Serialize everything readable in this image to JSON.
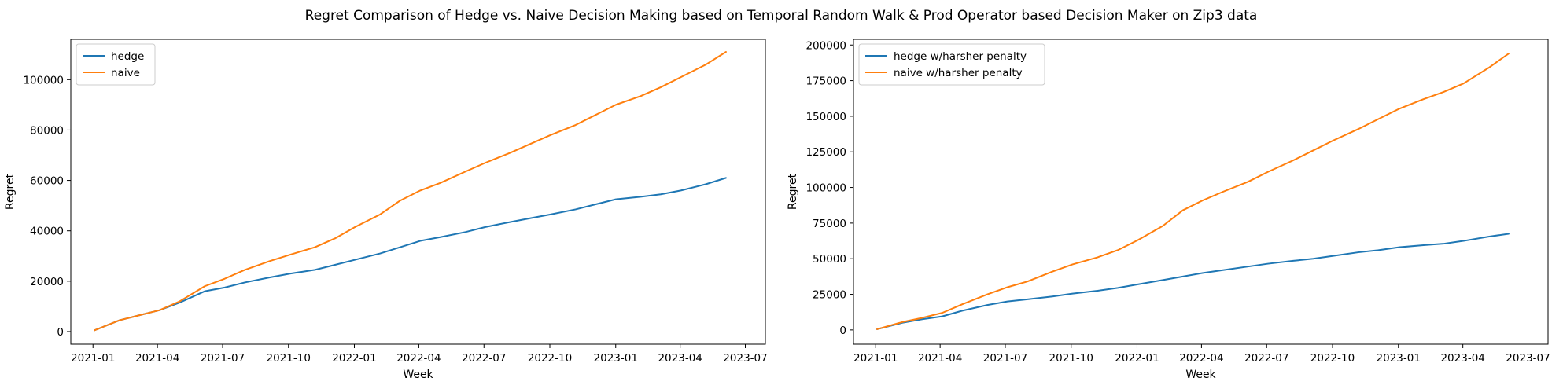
{
  "figure": {
    "suptitle": "Regret Comparison of Hedge vs. Naive Decision Making based on Temporal Random Walk & Prod Operator based Decision Maker on Zip3 data"
  },
  "chart_data": [
    {
      "type": "line",
      "title": "",
      "xlabel": "Week",
      "ylabel": "Regret",
      "x_axis_type": "date",
      "xlim": [
        "2020-12-01",
        "2023-07-29"
      ],
      "ylim": [
        -5000,
        116000
      ],
      "x_ticks": [
        "2021-01",
        "2021-04",
        "2021-07",
        "2021-10",
        "2022-01",
        "2022-04",
        "2022-07",
        "2022-10",
        "2023-01",
        "2023-04",
        "2023-07"
      ],
      "y_ticks": [
        0,
        20000,
        40000,
        60000,
        80000,
        100000
      ],
      "legend": "upper-left",
      "grid": false,
      "x": [
        "2021-01-03",
        "2021-02-07",
        "2021-03-07",
        "2021-04-04",
        "2021-05-02",
        "2021-06-06",
        "2021-07-04",
        "2021-08-01",
        "2021-09-05",
        "2021-10-03",
        "2021-11-07",
        "2021-12-05",
        "2022-01-02",
        "2022-02-06",
        "2022-03-06",
        "2022-04-03",
        "2022-05-01",
        "2022-06-05",
        "2022-07-03",
        "2022-08-07",
        "2022-09-04",
        "2022-10-02",
        "2022-11-06",
        "2022-12-04",
        "2023-01-01",
        "2023-02-05",
        "2023-03-05",
        "2023-04-02",
        "2023-05-07",
        "2023-06-04"
      ],
      "series": [
        {
          "name": "hedge",
          "color": "#1f77b4",
          "values": [
            500,
            4500,
            6500,
            8500,
            11500,
            16000,
            17500,
            19500,
            21500,
            23000,
            24500,
            26500,
            28500,
            31000,
            33500,
            36000,
            37500,
            39500,
            41500,
            43500,
            45000,
            46500,
            48500,
            50500,
            52500,
            53500,
            54500,
            56000,
            58500,
            61000
          ]
        },
        {
          "name": "naive",
          "color": "#ff7f0e",
          "values": [
            500,
            4500,
            6500,
            8500,
            12000,
            18000,
            21000,
            24500,
            28000,
            30500,
            33500,
            37000,
            41500,
            46500,
            52000,
            56000,
            59000,
            63500,
            67000,
            71000,
            74500,
            78000,
            82000,
            86000,
            90000,
            93500,
            97000,
            101000,
            106000,
            111000
          ]
        }
      ]
    },
    {
      "type": "line",
      "title": "",
      "xlabel": "Week",
      "ylabel": "Regret",
      "x_axis_type": "date",
      "xlim": [
        "2020-12-01",
        "2023-07-29"
      ],
      "ylim": [
        -10000,
        204000
      ],
      "x_ticks": [
        "2021-01",
        "2021-04",
        "2021-07",
        "2021-10",
        "2022-01",
        "2022-04",
        "2022-07",
        "2022-10",
        "2023-01",
        "2023-04",
        "2023-07"
      ],
      "y_ticks": [
        0,
        25000,
        50000,
        75000,
        100000,
        125000,
        150000,
        175000,
        200000
      ],
      "legend": "upper-left",
      "grid": false,
      "x": [
        "2021-01-03",
        "2021-02-07",
        "2021-03-07",
        "2021-04-04",
        "2021-05-02",
        "2021-06-06",
        "2021-07-04",
        "2021-08-01",
        "2021-09-05",
        "2021-10-03",
        "2021-11-07",
        "2021-12-05",
        "2022-01-02",
        "2022-02-06",
        "2022-03-06",
        "2022-04-03",
        "2022-05-01",
        "2022-06-05",
        "2022-07-03",
        "2022-08-07",
        "2022-09-04",
        "2022-10-02",
        "2022-11-06",
        "2022-12-04",
        "2023-01-01",
        "2023-02-05",
        "2023-03-05",
        "2023-04-02",
        "2023-05-07",
        "2023-06-04"
      ],
      "series": [
        {
          "name": "hedge w/harsher penalty",
          "color": "#1f77b4",
          "values": [
            500,
            5000,
            7500,
            9500,
            13500,
            17500,
            20000,
            21500,
            23500,
            25500,
            27500,
            29500,
            32000,
            35000,
            37500,
            40000,
            42000,
            44500,
            46500,
            48500,
            50000,
            52000,
            54500,
            56000,
            58000,
            59500,
            60500,
            62500,
            65500,
            67500
          ]
        },
        {
          "name": "naive w/harsher penalty",
          "color": "#ff7f0e",
          "values": [
            500,
            5500,
            8500,
            12000,
            18000,
            25000,
            30000,
            34000,
            41000,
            46000,
            51000,
            56000,
            63000,
            73000,
            84000,
            91000,
            97000,
            104000,
            111000,
            119000,
            126000,
            133000,
            141000,
            148000,
            155000,
            162000,
            167000,
            173000,
            184000,
            194000
          ]
        }
      ]
    }
  ]
}
